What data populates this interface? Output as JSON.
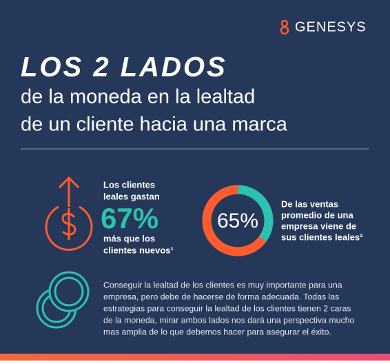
{
  "logo": "GENESYS",
  "title": {
    "line1": "LOS 2 LADOS",
    "line2": "de la moneda en la lealtad",
    "line3": "de un cliente hacia una marca"
  },
  "stat1": {
    "intro_lines": [
      "Los clientes",
      "leales gastan"
    ],
    "figure": "67%",
    "outro_lines": [
      "más que los",
      "clientes nuevos¹"
    ]
  },
  "donut": {
    "value": 65,
    "label": "65%",
    "caption_lines": [
      "De las ventas",
      "promedio de una",
      "empresa viene de",
      "sus clientes leales²"
    ]
  },
  "paragraph_lines": [
    "Conseguir la lealtad de los clientes es muy importante para una",
    "empresa, pero debe de hacerse de forma adecuada. Todas las",
    "estrategias para conseguir la lealtad de los clientes tienen 2 caras",
    "de la moneda, mirar ambos lados nos dará una perspectiva mucho",
    "mas amplia de lo que debemos hacer para asegurar el éxito."
  ]
}
